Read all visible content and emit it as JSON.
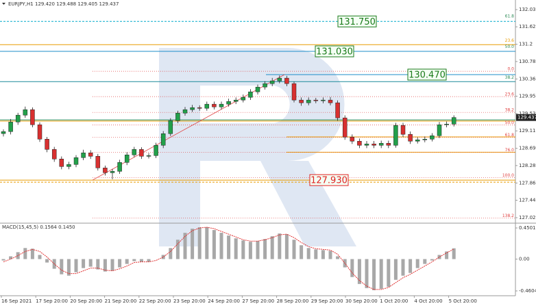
{
  "chart_data": [
    {
      "type": "candlestick",
      "title": "EURJPY,H1  129.420 129.488 129.405 129.437",
      "x_labels": [
        "16 Sep 2021",
        "17 Sep 20:00",
        "20 Sep 20:00",
        "21 Sep 20:00",
        "22 Sep 20:00",
        "23 Sep 20:00",
        "24 Sep 20:00",
        "27 Sep 20:00",
        "28 Sep 20:00",
        "29 Sep 20:00",
        "30 Sep 20:00",
        "1 Oct 20:00",
        "4 Oct 20:00",
        "5 Oct 20:00"
      ],
      "open": [
        129.05,
        129.098,
        129.329,
        129.494,
        129.626,
        129.263,
        128.916,
        128.669,
        128.438,
        128.256,
        128.306,
        128.471,
        128.586,
        128.504,
        128.223,
        128.108,
        128.141,
        128.355,
        128.537,
        128.669,
        128.504,
        128.52,
        128.768,
        129.048,
        129.362,
        129.543,
        129.626,
        129.675,
        129.659,
        129.758,
        129.692,
        129.758,
        129.824,
        129.857,
        129.923,
        130.055,
        130.17,
        130.253,
        130.319,
        130.385,
        130.253,
        129.857,
        129.791,
        129.857,
        129.84,
        129.857,
        129.791,
        129.428,
        128.966,
        128.867,
        128.768,
        128.801,
        128.768,
        128.817,
        128.768,
        129.246,
        129.032,
        128.867,
        128.9,
        128.916,
        128.999,
        129.263,
        129.279
      ],
      "high": [
        129.15,
        129.4,
        129.55,
        129.7,
        129.68,
        129.32,
        128.97,
        128.73,
        128.5,
        128.37,
        128.53,
        128.66,
        128.65,
        128.56,
        128.28,
        128.2,
        128.42,
        128.6,
        128.73,
        128.72,
        128.58,
        128.83,
        129.11,
        129.42,
        129.6,
        129.69,
        129.74,
        129.73,
        129.82,
        129.82,
        129.82,
        129.89,
        129.92,
        129.99,
        130.12,
        130.23,
        130.31,
        130.39,
        130.45,
        130.44,
        130.3,
        129.92,
        129.92,
        129.91,
        129.92,
        129.93,
        129.85,
        129.49,
        129.03,
        128.93,
        128.87,
        128.87,
        128.88,
        128.88,
        129.31,
        129.31,
        129.1,
        128.96,
        128.98,
        129.06,
        129.33,
        129.34,
        129.49
      ],
      "low": [
        128.98,
        129.03,
        129.26,
        129.43,
        129.2,
        128.85,
        128.6,
        128.37,
        128.19,
        128.19,
        128.24,
        128.41,
        128.44,
        128.16,
        128.04,
        127.95,
        128.08,
        128.29,
        128.48,
        128.44,
        128.45,
        128.46,
        128.7,
        128.99,
        129.3,
        129.48,
        129.57,
        129.6,
        129.6,
        129.63,
        129.63,
        129.7,
        129.76,
        129.8,
        129.86,
        129.99,
        130.11,
        130.19,
        130.26,
        130.19,
        129.8,
        129.72,
        129.73,
        129.78,
        129.78,
        129.73,
        129.36,
        128.9,
        128.8,
        128.7,
        128.7,
        128.7,
        128.7,
        128.7,
        128.71,
        128.97,
        128.8,
        128.81,
        128.84,
        128.86,
        128.94,
        129.2,
        129.22
      ],
      "close": [
        129.098,
        129.329,
        129.494,
        129.626,
        129.263,
        128.916,
        128.669,
        128.438,
        128.256,
        128.306,
        128.471,
        128.586,
        128.504,
        128.223,
        128.108,
        128.141,
        128.355,
        128.537,
        128.669,
        128.504,
        128.52,
        128.768,
        129.048,
        129.362,
        129.543,
        129.626,
        129.675,
        129.659,
        129.758,
        129.692,
        129.758,
        129.824,
        129.857,
        129.923,
        130.055,
        130.17,
        130.253,
        130.319,
        130.385,
        130.253,
        129.857,
        129.791,
        129.857,
        129.84,
        129.857,
        129.791,
        129.428,
        128.966,
        128.867,
        128.768,
        128.801,
        128.768,
        128.817,
        128.768,
        129.246,
        129.032,
        128.867,
        128.9,
        128.916,
        128.999,
        129.263,
        129.279,
        129.437
      ],
      "up_color": "#22a04a",
      "down_color": "#d83030",
      "ylim": [
        126.893,
        132.266
      ],
      "yticks": [
        132.035,
        131.62,
        131.2,
        130.785,
        130.365,
        129.95,
        129.53,
        129.115,
        128.695,
        128.28,
        127.86,
        127.445,
        127.025
      ],
      "last_price": 129.437,
      "levels": [
        {
          "value": 131.75,
          "color": "#00aacc",
          "style": "dashed"
        },
        {
          "value": 131.19,
          "color": "#e89b00",
          "style": "solid"
        },
        {
          "value": 131.03,
          "color": "#1e8cc8",
          "style": "solid"
        },
        {
          "value": 130.47,
          "color": "#1e8cc8",
          "style": "solid"
        },
        {
          "value": 130.3,
          "color": "#1a8a9a",
          "style": "solid"
        },
        {
          "value": 129.38,
          "color": "#2e8b57",
          "style": "solid"
        },
        {
          "value": 129.35,
          "color": "#e89b00",
          "style": "solid"
        },
        {
          "value": 128.97,
          "color": "#e89b00",
          "style": "solid"
        },
        {
          "value": 128.6,
          "color": "#e89b00",
          "style": "solid"
        },
        {
          "value": 127.93,
          "color": "#e89b00",
          "style": "solid"
        },
        {
          "value": 127.88,
          "color": "#e89b00",
          "style": "dashed"
        }
      ],
      "fib_levels": [
        {
          "value": 131.82,
          "label": "61.8",
          "color": "#2e8b57"
        },
        {
          "value": 131.24,
          "label": "23.6",
          "color": "#e89b00"
        },
        {
          "value": 131.09,
          "label": "50.0",
          "color": "#2e8b57"
        },
        {
          "value": 130.35,
          "label": "38.2",
          "color": "#2e8b57"
        },
        {
          "value": 130.55,
          "label": "0.0",
          "color": "#e04040"
        },
        {
          "value": 129.94,
          "label": "23.6",
          "color": "#e04040"
        },
        {
          "value": 129.56,
          "label": "38.2",
          "color": "#e04040"
        },
        {
          "value": 129.26,
          "label": "50.0",
          "color": "#e04040"
        },
        {
          "value": 128.96,
          "label": "61.8",
          "color": "#e04040"
        },
        {
          "value": 128.6,
          "label": "76.0",
          "color": "#e04040"
        },
        {
          "value": 127.99,
          "label": "100.0",
          "color": "#e04040"
        },
        {
          "value": 127.02,
          "label": "138.2",
          "color": "#e04040"
        }
      ],
      "trend_line": [
        127.93,
        130.47
      ],
      "annotations": [
        {
          "text": "131.750",
          "value": 131.75,
          "color": "#1a7a1a"
        },
        {
          "text": "131.030",
          "value": 131.03,
          "color": "#1a7a1a"
        },
        {
          "text": "130.470",
          "value": 130.47,
          "color": "#1a7a1a"
        },
        {
          "text": "127.930",
          "value": 127.93,
          "color": "#e02020"
        }
      ]
    },
    {
      "type": "macd",
      "title": "MACD(15,45,5) 0.1564 0.1450",
      "values": [
        -0.02,
        0.04,
        0.1,
        0.16,
        0.15,
        0.06,
        -0.05,
        -0.14,
        -0.22,
        -0.24,
        -0.19,
        -0.13,
        -0.11,
        -0.15,
        -0.18,
        -0.17,
        -0.12,
        -0.07,
        -0.03,
        -0.04,
        -0.04,
        0,
        0.06,
        0.16,
        0.28,
        0.38,
        0.44,
        0.46,
        0.46,
        0.42,
        0.38,
        0.34,
        0.3,
        0.27,
        0.25,
        0.26,
        0.29,
        0.33,
        0.37,
        0.36,
        0.28,
        0.2,
        0.16,
        0.14,
        0.13,
        0.12,
        0.04,
        -0.12,
        -0.26,
        -0.36,
        -0.42,
        -0.45,
        -0.43,
        -0.4,
        -0.3,
        -0.24,
        -0.2,
        -0.13,
        -0.07,
        -0.02,
        0.06,
        0.11,
        0.156
      ],
      "signal": [
        -0.04,
        0,
        0.05,
        0.11,
        0.14,
        0.11,
        0.03,
        -0.07,
        -0.16,
        -0.21,
        -0.21,
        -0.17,
        -0.13,
        -0.13,
        -0.16,
        -0.17,
        -0.14,
        -0.1,
        -0.05,
        -0.04,
        -0.04,
        -0.02,
        0.03,
        0.11,
        0.22,
        0.33,
        0.41,
        0.45,
        0.46,
        0.44,
        0.4,
        0.36,
        0.32,
        0.28,
        0.26,
        0.26,
        0.28,
        0.31,
        0.35,
        0.36,
        0.31,
        0.24,
        0.18,
        0.15,
        0.14,
        0.13,
        0.07,
        -0.06,
        -0.2,
        -0.31,
        -0.39,
        -0.44,
        -0.44,
        -0.41,
        -0.34,
        -0.27,
        -0.22,
        -0.16,
        -0.1,
        -0.04,
        0.03,
        0.09,
        0.145
      ],
      "color": "#a8a8a8",
      "signal_color": "#e03030",
      "ylim": [
        -0.53,
        0.5095
      ],
      "yticks": [
        0.4501,
        {
          "value": 0,
          "label": "0.00"
        },
        -0.4604
      ]
    }
  ]
}
